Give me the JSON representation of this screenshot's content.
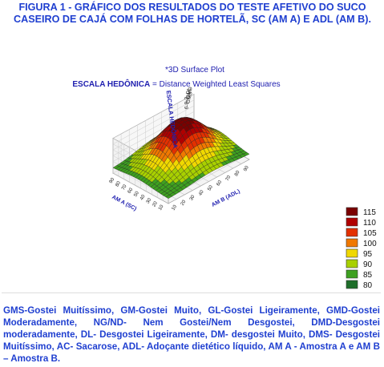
{
  "figure": {
    "caption_top": "FIGURA 1 - GRÁFICO DOS RESULTADOS DO TESTE AFETIVO DO SUCO CASEIRO DE CAJÁ COM FOLHAS DE HORTELÃ, SC (AM A) E ADL (AM B).",
    "caption_bottom": "GMS-Gostei Muitíssimo, GM-Gostei Muito, GL-Gostei Ligeiramente, GMD-Gostei Moderadamente, NG/ND- Nem Gostei/Nem Desgostei, DMD-Desgostei moderadamente, DL- Desgostei Ligeiramente, DM- desgostei Muito, DMS- Desgostei Muitíssimo, AC- Sacarose, ADL- Adoçante dietético líquido, AM A - Amostra A e AM B – Amostra B."
  },
  "chart_data": {
    "type": "surface",
    "title": "*3D Surface Plot",
    "subtitle_bold": "ESCALA HEDÔNICA",
    "subtitle_rest": " = Distance Weighted Least Squares",
    "zlabel": "ESCALA HEDÔNICA",
    "xlabel": "AM B (ADL)",
    "ylabel": "AM A (SC)",
    "z_tick_labels": [
      "6- GMS",
      "9- GMD",
      "3- DL"
    ],
    "x_tick_labels": [
      "10",
      "20",
      "30",
      "40",
      "50",
      "60",
      "70",
      "80",
      "90"
    ],
    "y_tick_labels": [
      "10",
      "20",
      "30",
      "40",
      "50",
      "60",
      "70",
      "80",
      "90"
    ],
    "z_range": [
      80,
      120
    ],
    "legend": {
      "position": "right",
      "items": [
        {
          "label": "115",
          "color": "#7a0000"
        },
        {
          "label": "110",
          "color": "#b00000"
        },
        {
          "label": "105",
          "color": "#e33000"
        },
        {
          "label": "100",
          "color": "#f07800"
        },
        {
          "label": "95",
          "color": "#f0d800"
        },
        {
          "label": "90",
          "color": "#a8d000"
        },
        {
          "label": "85",
          "color": "#3ea020"
        },
        {
          "label": "80",
          "color": "#1e6e2a"
        }
      ]
    }
  }
}
